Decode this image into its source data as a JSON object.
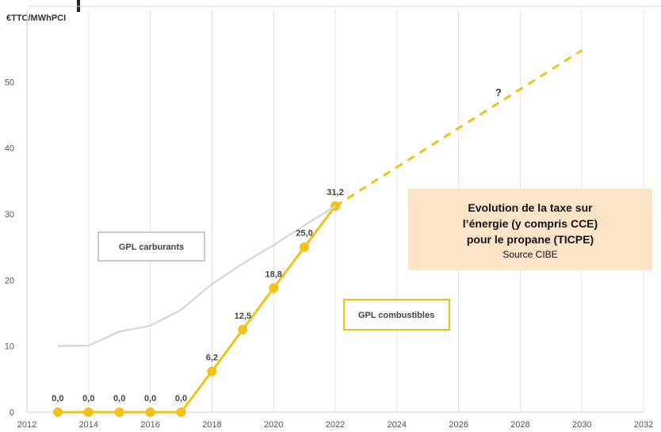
{
  "chart_data": {
    "type": "line",
    "ylabel": "€TTC/MWhPCI",
    "xlim": [
      2012,
      2032
    ],
    "ylim": [
      0,
      55
    ],
    "x_ticks": [
      "2012",
      "2014",
      "2016",
      "2018",
      "2020",
      "2022",
      "2024",
      "2026",
      "2028",
      "2030",
      "2032"
    ],
    "y_ticks": [
      "0",
      "10",
      "20",
      "30",
      "40",
      "50"
    ],
    "grid": "vertical",
    "series": [
      {
        "name": "GPL combustibles",
        "color": "#f5c014",
        "x": [
          2013,
          2014,
          2015,
          2016,
          2017,
          2018,
          2019,
          2020,
          2021,
          2022
        ],
        "y": [
          0.0,
          0.0,
          0.0,
          0.0,
          0.0,
          6.2,
          12.5,
          18.8,
          25.0,
          31.2
        ],
        "labels": [
          "0,0",
          "0,0",
          "0,0",
          "0,0",
          "0,0",
          "6,2",
          "12,5",
          "18,8",
          "25,0",
          "31,2"
        ]
      },
      {
        "name": "GPL carburants",
        "color": "#d9d9d9",
        "x": [
          2013,
          2014,
          2015,
          2016,
          2017,
          2018,
          2019,
          2020,
          2021,
          2022
        ],
        "y": [
          10.0,
          10.1,
          12.2,
          13.1,
          15.5,
          19.4,
          22.5,
          25.3,
          28.3,
          31.2
        ]
      },
      {
        "name": "projection",
        "style": "dashed",
        "color": "#f5c014",
        "x": [
          2022,
          2030
        ],
        "y": [
          31.2,
          54.8
        ]
      }
    ],
    "annotations": {
      "question_mark": "?",
      "legend_carburants": "GPL carburants",
      "legend_combustibles": "GPL combustibles"
    }
  },
  "info_box": {
    "title_line1": "Evolution de la taxe sur",
    "title_line2": "l’énergie (y compris CCE)",
    "title_line3": "pour le propane (TICPE)",
    "source": "Source CIBE"
  }
}
